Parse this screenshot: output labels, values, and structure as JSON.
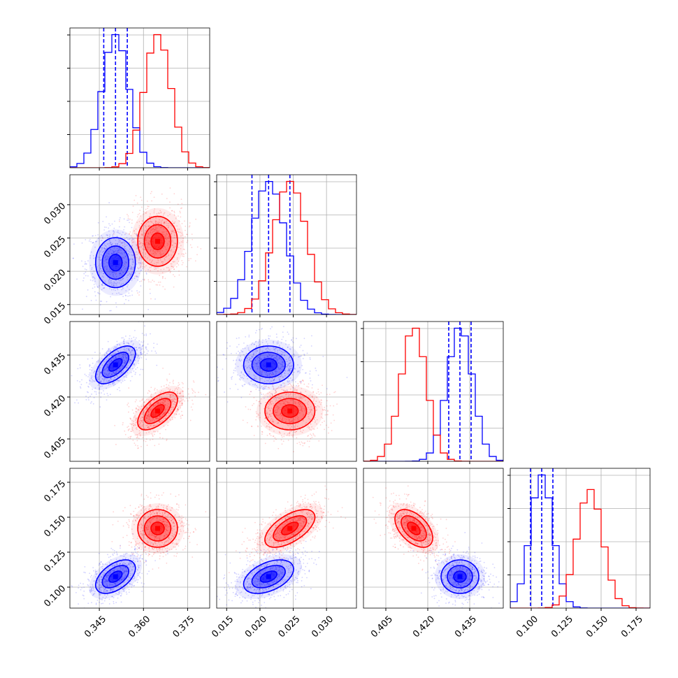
{
  "chart_data": {
    "type": "corner",
    "title": "",
    "series": [
      {
        "name": "",
        "color": "#0000ff",
        "mean": [
          0.3505,
          0.0213,
          0.4315,
          0.1075
        ],
        "sd": [
          0.0045,
          0.0025,
          0.0045,
          0.008
        ],
        "corr": [
          [
            1,
            0.0,
            0.6,
            0.5
          ],
          [
            0.0,
            1,
            0.0,
            0.45
          ],
          [
            0.6,
            0.0,
            1,
            0.0
          ],
          [
            0.5,
            0.45,
            0.0,
            1
          ]
        ],
        "quantiles": [
          [
            0.3465,
            0.3505,
            0.3545
          ],
          [
            0.0188,
            0.0213,
            0.0245
          ],
          [
            0.4275,
            0.4315,
            0.4355
          ],
          [
            0.0995,
            0.1075,
            0.1155
          ]
        ]
      },
      {
        "name": "",
        "color": "#ff0000",
        "mean": [
          0.3648,
          0.0245,
          0.415,
          0.142
        ],
        "sd": [
          0.0045,
          0.0025,
          0.0045,
          0.009
        ],
        "corr": [
          [
            1,
            0.0,
            0.6,
            0.0
          ],
          [
            0.0,
            1,
            0.0,
            0.6
          ],
          [
            0.6,
            0.0,
            1,
            -0.5
          ],
          [
            0.0,
            0.6,
            -0.5,
            1
          ]
        ],
        "quantiles": []
      }
    ],
    "parameters": [
      {
        "range": [
          0.335,
          0.3825
        ],
        "ticks": [
          "0.345",
          "0.360",
          "0.375"
        ],
        "tick_values": [
          0.345,
          0.36,
          0.375
        ]
      },
      {
        "range": [
          0.0135,
          0.0345
        ],
        "ticks": [
          "0.015",
          "0.020",
          "0.025",
          "0.030"
        ],
        "tick_values": [
          0.015,
          0.02,
          0.025,
          0.03
        ]
      },
      {
        "range": [
          0.397,
          0.447
        ],
        "ticks": [
          "0.405",
          "0.420",
          "0.435"
        ],
        "tick_values": [
          0.405,
          0.42,
          0.435
        ]
      },
      {
        "range": [
          0.085,
          0.185
        ],
        "ticks": [
          "0.100",
          "0.125",
          "0.150",
          "0.175"
        ],
        "tick_values": [
          0.1,
          0.125,
          0.15,
          0.175
        ]
      }
    ],
    "hist_bins": 20,
    "contour_levels_sigma": [
      0.5,
      1.0,
      1.5,
      2.0
    ],
    "grid": true,
    "legend": "none"
  }
}
